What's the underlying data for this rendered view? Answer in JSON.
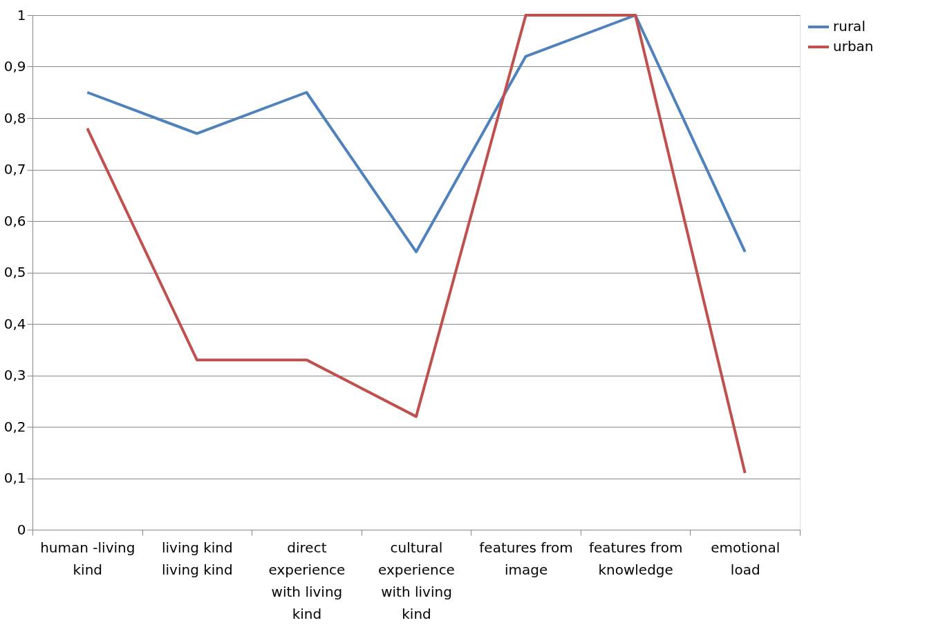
{
  "chart_data": {
    "type": "line",
    "categories": [
      "human -living kind",
      "living kind living kind",
      "direct experience with living kind",
      "cultural experience with living kind",
      "features from image",
      "features from knowledge",
      "emotional load"
    ],
    "series": [
      {
        "name": "rural",
        "color": "#4f81bd",
        "values": [
          0.85,
          0.77,
          0.85,
          0.54,
          0.92,
          1,
          0.54
        ]
      },
      {
        "name": "urban",
        "color": "#c0504d",
        "values": [
          0.78,
          0.33,
          0.33,
          0.22,
          1,
          1,
          0.11
        ]
      }
    ],
    "ylim": [
      0,
      1
    ],
    "yticks": [
      0,
      {
        "value": 0.1,
        "label": "0,1"
      },
      {
        "value": 0.2,
        "label": "0,2"
      },
      {
        "value": 0.3,
        "label": "0,3"
      },
      {
        "value": 0.4,
        "label": "0,4"
      },
      {
        "value": 0.5,
        "label": "0,5"
      },
      {
        "value": 0.6,
        "label": "0,6"
      },
      {
        "value": 0.7,
        "label": "0,7"
      },
      {
        "value": 0.8,
        "label": "0,8"
      },
      {
        "value": 0.9,
        "label": "0,9"
      },
      1
    ],
    "grid": "y",
    "legend": "right",
    "marker": "none",
    "line_style": "solid"
  }
}
